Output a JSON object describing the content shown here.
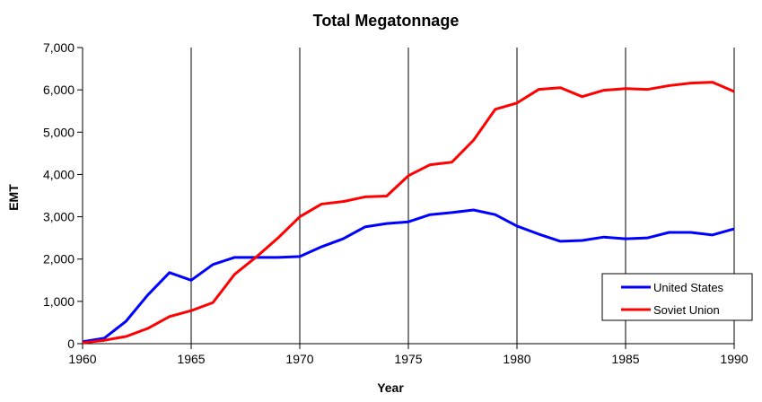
{
  "chart_data": {
    "type": "line",
    "title": "Total Megatonnage",
    "xlabel": "Year",
    "ylabel": "EMT",
    "xlim": [
      1960,
      1990
    ],
    "ylim": [
      0,
      7000
    ],
    "x_ticks": [
      "1960",
      "1965",
      "1970",
      "1975",
      "1980",
      "1985",
      "1990"
    ],
    "y_ticks": [
      "0",
      "1,000",
      "2,000",
      "3,000",
      "4,000",
      "5,000",
      "6,000",
      "7,000"
    ],
    "grid": "vertical lines every 5 years",
    "legend_position": "bottom-right",
    "x": [
      1960,
      1961,
      1962,
      1963,
      1964,
      1965,
      1966,
      1967,
      1968,
      1969,
      1970,
      1971,
      1972,
      1973,
      1974,
      1975,
      1976,
      1977,
      1978,
      1979,
      1980,
      1981,
      1982,
      1983,
      1984,
      1985,
      1986,
      1987,
      1988,
      1989,
      1990
    ],
    "series": [
      {
        "name": "United States",
        "color": "#0000ff",
        "values": [
          45,
          130,
          530,
          1150,
          1680,
          1500,
          1870,
          2040,
          2040,
          2040,
          2060,
          2290,
          2480,
          2760,
          2840,
          2880,
          3050,
          3100,
          3160,
          3050,
          2780,
          2590,
          2420,
          2440,
          2520,
          2480,
          2500,
          2630,
          2630,
          2570,
          2715
        ]
      },
      {
        "name": "Soviet Union",
        "color": "#ff0000",
        "values": [
          20,
          80,
          170,
          360,
          640,
          780,
          970,
          1640,
          2050,
          2500,
          3000,
          3300,
          3360,
          3470,
          3490,
          3970,
          4230,
          4290,
          4810,
          5540,
          5690,
          6010,
          6050,
          5840,
          5990,
          6030,
          6010,
          6100,
          6160,
          6180,
          5960
        ]
      }
    ]
  }
}
